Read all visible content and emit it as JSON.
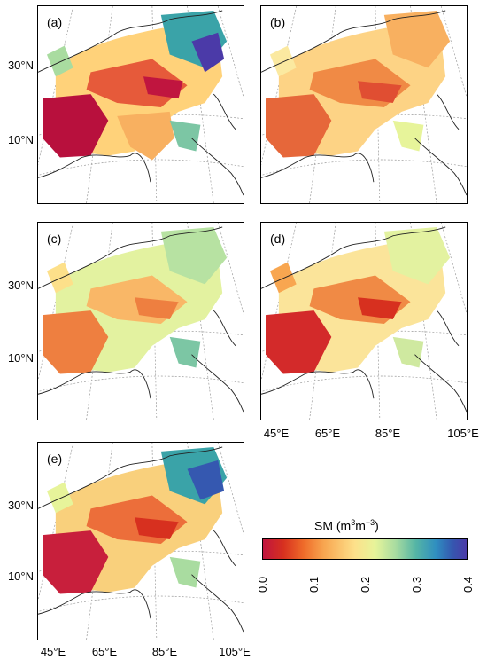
{
  "panels": [
    {
      "label": "(a)",
      "style": "a"
    },
    {
      "label": "(b)",
      "style": "b"
    },
    {
      "label": "(c)",
      "style": "c"
    },
    {
      "label": "(d)",
      "style": "d"
    },
    {
      "label": "(e)",
      "style": "e"
    }
  ],
  "lat_labels": [
    "30°N",
    "10°N"
  ],
  "lon_labels": [
    "45°E",
    "65°E",
    "85°E",
    "105°E"
  ],
  "colorbar": {
    "title_prefix": "SM (m",
    "sup1": "3",
    "middle": "m",
    "sup2": "−3",
    "title_suffix": ")",
    "ticks": [
      "0.0",
      "0.1",
      "0.2",
      "0.3",
      "0.4"
    ],
    "range": [
      0.0,
      0.4
    ]
  }
}
